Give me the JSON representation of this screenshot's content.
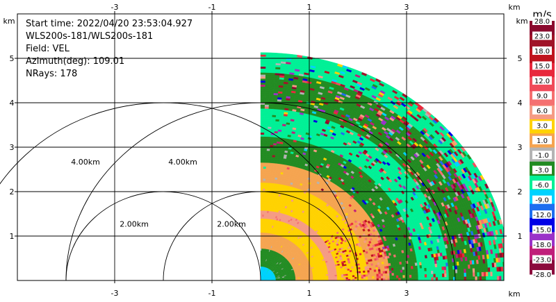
{
  "chart_data": {
    "type": "heatmap",
    "title": "",
    "info_lines": [
      "Start time: 2022/04/20 23:53:04.927",
      "WLS200s-181/WLS200s-181",
      "Field: VEL",
      "Azimuth(deg): 109.01",
      "NRays: 178"
    ],
    "x_unit": "km",
    "y_unit": "km",
    "xlim": [
      -4.95,
      4.15
    ],
    "ylim": [
      0,
      5.35
    ],
    "x_ticks": [
      -3,
      -1,
      1,
      3
    ],
    "x_tick_labels": [
      "-3",
      "-1",
      "1",
      "3"
    ],
    "y_ticks": [
      1,
      2,
      3,
      4,
      5
    ],
    "y_tick_labels": [
      "1",
      "2",
      "3",
      "4",
      "5"
    ],
    "grid": true,
    "sector": {
      "theta_min_deg": 0,
      "theta_max_deg": 90,
      "max_range_km": 5.1
    },
    "range_rings": [
      {
        "radius_km": 2.0,
        "center_x_km": 0,
        "label": "2.00km"
      },
      {
        "radius_km": 4.0,
        "center_x_km": 0,
        "label": "4.00km"
      },
      {
        "radius_km": 2.0,
        "center_x_km": -2,
        "label": "2.00km"
      },
      {
        "radius_km": 4.0,
        "center_x_km": -2,
        "label": "4.00km"
      }
    ],
    "colorbar": {
      "unit": "m/s",
      "tick_labels": [
        "28.0",
        "23.0",
        "18.0",
        "15.0",
        "12.0",
        "9.0",
        "6.0",
        "3.0",
        "1.0",
        "-1.0",
        "-3.0",
        "-6.0",
        "-9.0",
        "-12.0",
        "-15.0",
        "-18.0",
        "-23.0",
        "-28.0"
      ],
      "colors": [
        "#8b0a2e",
        "#a01428",
        "#c0141e",
        "#e8283c",
        "#f04b5a",
        "#f57070",
        "#f59b84",
        "#ffeb00",
        "#fff200",
        "#f0a050",
        "#f09a50",
        "#b4b4b4",
        "#228b22",
        "#1e8c2a",
        "#00ff96",
        "#00e0b0",
        "#00c8ff",
        "#1e90ff",
        "#0000ff",
        "#0000c8",
        "#9932cc",
        "#b03ac8",
        "#c81e82",
        "#8b0a3c"
      ],
      "band_colors": [
        "#8b0a2e",
        "#a01428",
        "#c0141e",
        "#e8283c",
        "#f04b5a",
        "#f57070",
        "#f59b84",
        "#ffd200",
        "#f5a450",
        "#b4b4b4",
        "#228b22",
        "#00f096",
        "#00d2ff",
        "#1e6ef0",
        "#0000e6",
        "#9a32c8",
        "#c01e7a",
        "#8b0a3c"
      ]
    },
    "velocity_layers": [
      {
        "r_min_km": 0.0,
        "r_max_km": 0.28,
        "value": -9.0
      },
      {
        "r_min_km": 0.28,
        "r_max_km": 0.72,
        "value": -3.0
      },
      {
        "r_min_km": 0.72,
        "r_max_km": 1.05,
        "value": 0.0
      },
      {
        "r_min_km": 1.05,
        "r_max_km": 1.38,
        "value": 3.0
      },
      {
        "r_min_km": 1.38,
        "r_max_km": 1.55,
        "value": 6.0
      },
      {
        "r_min_km": 1.55,
        "r_max_km": 2.2,
        "value": 3.0
      },
      {
        "r_min_km": 2.2,
        "r_max_km": 2.62,
        "value": 0.0
      },
      {
        "r_min_km": 2.62,
        "r_max_km": 3.2,
        "value": -3.0
      },
      {
        "r_min_km": 3.2,
        "r_max_km": 3.85,
        "value": -7.0
      },
      {
        "r_min_km": 3.85,
        "r_max_km": 4.65,
        "value": -3.0
      },
      {
        "r_min_km": 4.65,
        "r_max_km": 5.1,
        "value": -7.0
      }
    ]
  }
}
